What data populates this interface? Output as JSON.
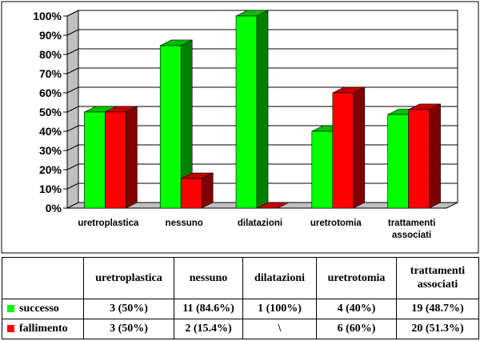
{
  "colors": {
    "successo": "#00ff00",
    "successo_side": "#008000",
    "successo_top": "#00c000",
    "fallimento": "#ff0000",
    "fallimento_side": "#800000",
    "fallimento_top": "#c00000",
    "plot_bg": "#ffffff",
    "grid": "#000000"
  },
  "chart_data": {
    "type": "bar",
    "three_d": true,
    "categories": [
      "uretroplastica",
      "nessuno",
      "dilatazioni",
      "uretrotomia",
      "trattamenti associati"
    ],
    "series": [
      {
        "name": "successo",
        "values": [
          50,
          84.6,
          100,
          40,
          48.7
        ]
      },
      {
        "name": "fallimento",
        "values": [
          50,
          15.4,
          0,
          60,
          51.3
        ]
      }
    ],
    "ylim": [
      0,
      100
    ],
    "yticks": [
      "0%",
      "10%",
      "20%",
      "30%",
      "40%",
      "50%",
      "60%",
      "70%",
      "80%",
      "90%",
      "100%"
    ],
    "grid": true,
    "legend": "data-table"
  },
  "table": {
    "headers": [
      "uretroplastica",
      "nessuno",
      "dilatazioni",
      "uretrotomia",
      "trattamenti associati"
    ],
    "rows": [
      {
        "label": "successo",
        "cells": [
          "3 (50%)",
          "11 (84.6%)",
          "1 (100%)",
          "4 (40%)",
          "19 (48.7%)"
        ]
      },
      {
        "label": "fallimento",
        "cells": [
          "3 (50%)",
          "2 (15.4%)",
          "\\",
          "6 (60%)",
          "20 (51.3%)"
        ]
      }
    ]
  }
}
